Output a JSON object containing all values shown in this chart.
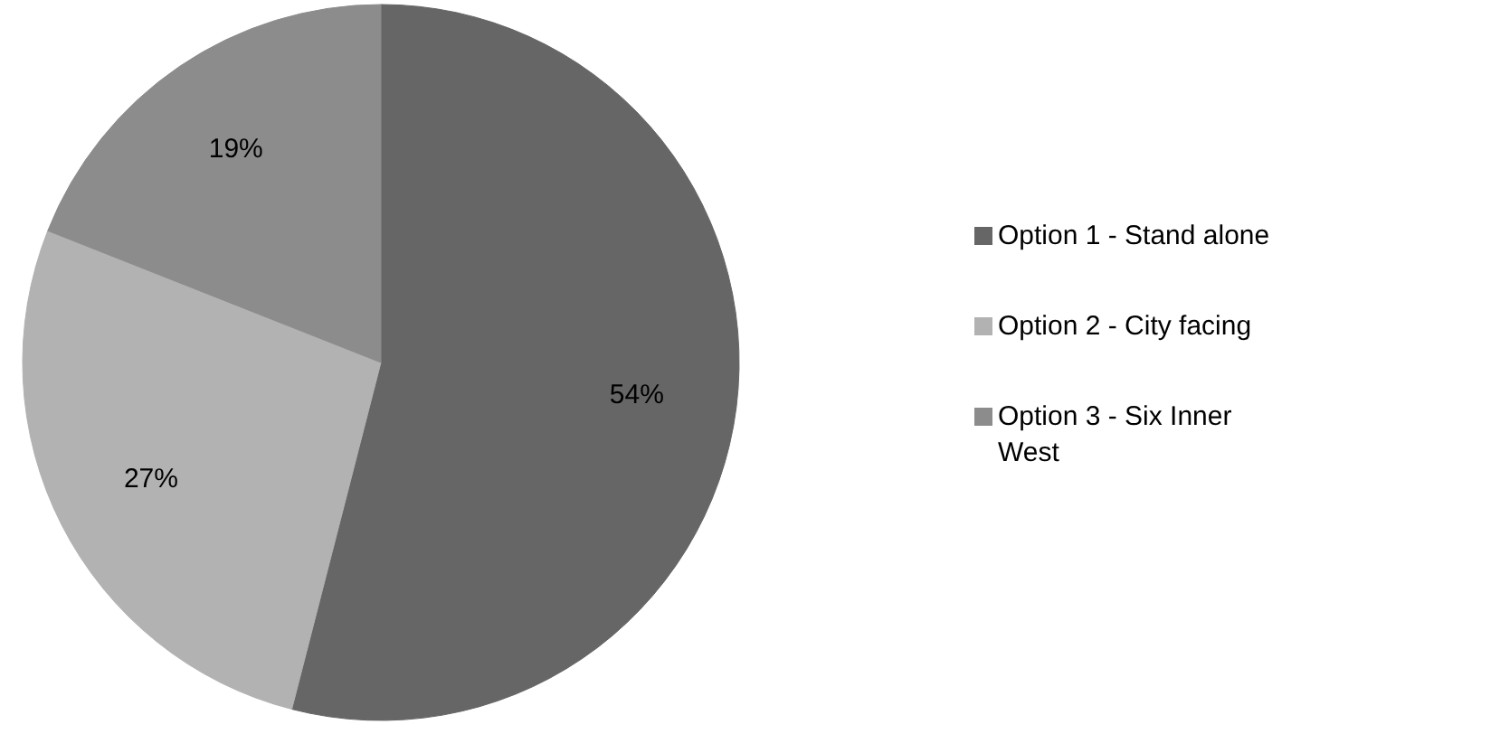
{
  "chart_data": {
    "type": "pie",
    "categories": [
      "Option 1 - Stand alone",
      "Option 2 - City facing",
      "Option 3 - Six Inner West"
    ],
    "values": [
      54,
      27,
      19
    ],
    "colors": [
      "#666666",
      "#b2b2b2",
      "#8c8c8c"
    ],
    "value_labels": [
      "54%",
      "27%",
      "19%"
    ],
    "legend": "right"
  }
}
